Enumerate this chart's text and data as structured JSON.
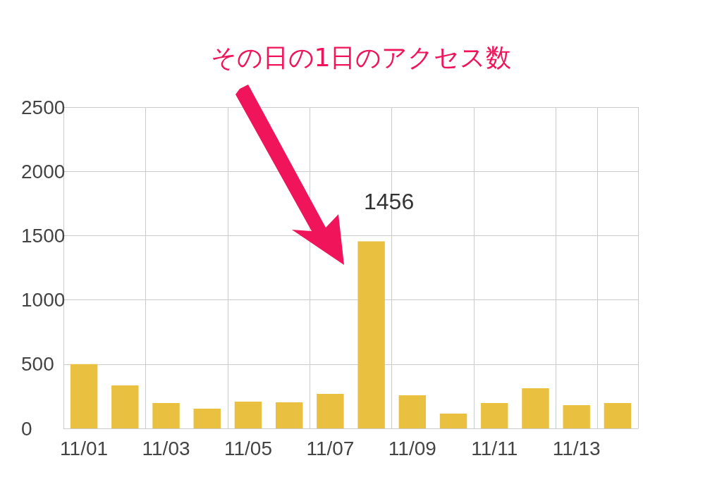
{
  "chart_data": {
    "type": "bar",
    "categories": [
      "11/01",
      null,
      "11/03",
      null,
      "11/05",
      null,
      "11/07",
      null,
      "11/09",
      null,
      "11/11",
      null,
      "11/13",
      null
    ],
    "values": [
      500,
      334,
      197,
      154,
      208,
      203,
      269,
      1456,
      258,
      115,
      197,
      313,
      181,
      197
    ],
    "value_labels": [
      null,
      null,
      null,
      null,
      null,
      null,
      null,
      "1456",
      null,
      null,
      null,
      null,
      null,
      null
    ],
    "color": "#e9c03f",
    "ylim": [
      0,
      2500
    ],
    "yticks": [
      0,
      500,
      1000,
      1500,
      2000,
      2500
    ],
    "grid": true,
    "annotations": [
      "その日の1日のアクセス数"
    ]
  }
}
